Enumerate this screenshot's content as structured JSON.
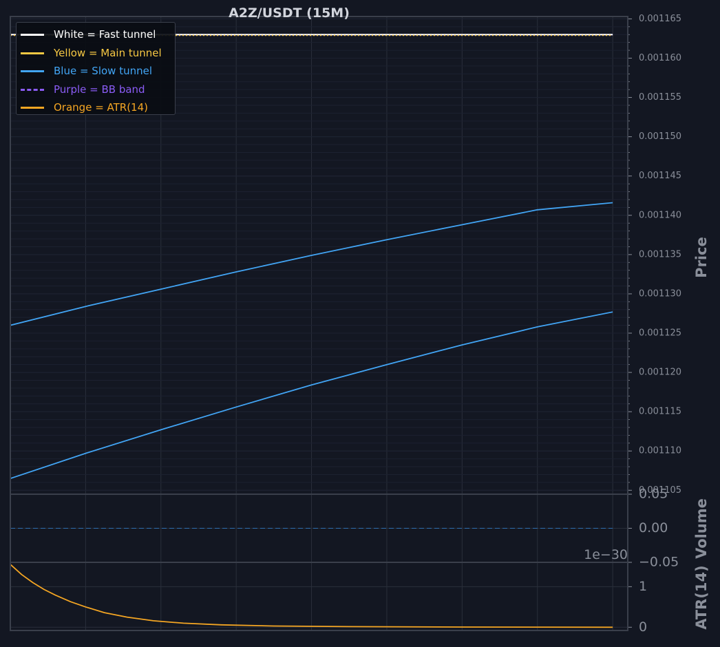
{
  "colors": {
    "background": "#131722",
    "axis": "#3a3f4b",
    "grid": "#2a2f3b",
    "tick_text": "#8a8f9a",
    "title_text": "#d1d4dc",
    "fast": "#ffffff",
    "main": "#f7c843",
    "slow": "#42a5f5",
    "bb": "#8b5cf6",
    "atr": "#f5a623",
    "volume": "#2f6fb0"
  },
  "chart_data": [
    {
      "panel": "price",
      "type": "line",
      "title": "A2Z/USDT (15M)",
      "ylabel": "Price",
      "ylim": [
        0.0011045,
        0.0011653
      ],
      "yticks": [
        0.001105,
        0.00111,
        0.001115,
        0.00112,
        0.001125,
        0.00113,
        0.001135,
        0.00114,
        0.001145,
        0.00115,
        0.001155,
        0.00116,
        0.001165
      ],
      "ytick_labels": [
        "0.001105",
        "0.001110",
        "0.001115",
        "0.001120",
        "0.001125",
        "0.001130",
        "0.001135",
        "0.001140",
        "0.001145",
        "0.001150",
        "0.001155",
        "0.001160",
        "0.001165"
      ],
      "xlim": [
        0,
        82
      ],
      "grid": true,
      "legend": {
        "position": "top-left",
        "entries": [
          {
            "label": "White = Fast tunnel",
            "color": "#ffffff",
            "style": "solid"
          },
          {
            "label": "Yellow = Main tunnel",
            "color": "#f7c843",
            "style": "solid"
          },
          {
            "label": "Blue = Slow tunnel",
            "color": "#42a5f5",
            "style": "solid"
          },
          {
            "label": "Purple = BB band",
            "color": "#8b5cf6",
            "style": "dashed"
          },
          {
            "label": "Orange = ATR(14)",
            "color": "#f5a623",
            "style": "solid"
          }
        ]
      },
      "series": [
        {
          "color": "#8b5cf6",
          "style": "dashed",
          "x": [
            0,
            80
          ],
          "y": [
            0.001163,
            0.001163
          ]
        },
        {
          "color": "#ffffff",
          "style": "solid",
          "x": [
            0,
            80
          ],
          "y": [
            0.001163,
            0.001163
          ]
        },
        {
          "color": "#f7c843",
          "style": "dotted",
          "x": [
            0,
            80
          ],
          "y": [
            0.0011629,
            0.0011629
          ]
        },
        {
          "color": "#42a5f5",
          "style": "solid",
          "x": [
            0,
            10,
            20,
            30,
            40,
            50,
            60,
            70,
            80
          ],
          "y": [
            0.001126,
            0.0011284,
            0.0011306,
            0.0011328,
            0.0011349,
            0.0011369,
            0.0011388,
            0.0011407,
            0.0011416
          ]
        },
        {
          "color": "#42a5f5",
          "style": "solid",
          "x": [
            0,
            10,
            20,
            30,
            40,
            50,
            60,
            70,
            80
          ],
          "y": [
            0.0011065,
            0.0011097,
            0.0011127,
            0.0011156,
            0.0011184,
            0.001121,
            0.0011235,
            0.0011258,
            0.0011277
          ]
        }
      ]
    },
    {
      "panel": "volume",
      "type": "line",
      "ylabel": "Volume",
      "ylim": [
        -0.05,
        0.05
      ],
      "yticks": [
        -0.05,
        0.0,
        0.05
      ],
      "ytick_labels": [
        "−0.05",
        "0.00",
        "0.05"
      ],
      "xlim": [
        0,
        82
      ],
      "grid": true,
      "series": [
        {
          "color": "#2f6fb0",
          "style": "dashed",
          "x": [
            0,
            80
          ],
          "y": [
            0,
            0
          ]
        }
      ]
    },
    {
      "panel": "atr",
      "type": "line",
      "ylabel": "ATR(14)",
      "offset_label": "1e−30",
      "ylim": [
        -0.08,
        1.6
      ],
      "yticks": [
        0,
        1
      ],
      "ytick_labels": [
        "0",
        "1"
      ],
      "xlim": [
        0,
        82
      ],
      "grid": true,
      "series": [
        {
          "color": "#f5a623",
          "style": "solid",
          "x": [
            0,
            1.5,
            3,
            4.5,
            6,
            8,
            10,
            12.5,
            15.5,
            19,
            23,
            28,
            35,
            45,
            60,
            80
          ],
          "y": [
            1.55,
            1.3,
            1.1,
            0.93,
            0.79,
            0.63,
            0.5,
            0.36,
            0.25,
            0.16,
            0.1,
            0.06,
            0.03,
            0.015,
            0.005,
            0.0
          ]
        }
      ]
    }
  ]
}
